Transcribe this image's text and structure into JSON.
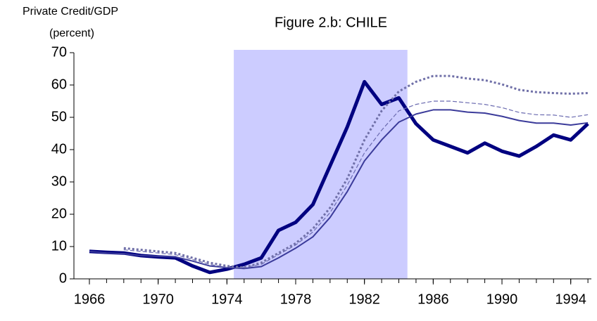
{
  "chart_data": {
    "type": "line",
    "title": "Figure 2.b: CHILE",
    "y_label": [
      "Private Credit/GDP",
      "(percent)"
    ],
    "x": [
      1966,
      1967,
      1968,
      1969,
      1970,
      1971,
      1972,
      1973,
      1974,
      1975,
      1976,
      1977,
      1978,
      1979,
      1980,
      1981,
      1982,
      1983,
      1984,
      1985,
      1986,
      1987,
      1988,
      1989,
      1990,
      1991,
      1992,
      1993,
      1994,
      1995
    ],
    "series": [
      {
        "color": "#000080",
        "width": 5,
        "dash": "none",
        "values": [
          8.5,
          8.2,
          8.0,
          7.2,
          6.8,
          6.5,
          4.0,
          2.0,
          3.0,
          4.5,
          6.5,
          15,
          17.5,
          23,
          35,
          47,
          61,
          54,
          56,
          48,
          43,
          41,
          39,
          42,
          39.5,
          38,
          41,
          44.5,
          43,
          48
        ]
      },
      {
        "color": "#3b3b9a",
        "width": 2,
        "dash": "none",
        "values": [
          8.5,
          8.0,
          7.8,
          7.2,
          7.0,
          6.8,
          5.5,
          4.0,
          3.5,
          3.2,
          3.8,
          6.5,
          9.5,
          13,
          19,
          27,
          36.5,
          43,
          48.5,
          51,
          52.3,
          52.3,
          51.6,
          51.3,
          50.3,
          49,
          48.2,
          48.2,
          47.6,
          48.3
        ]
      },
      {
        "color": "#6b6bb0",
        "width": 1.2,
        "dash": "6 3",
        "values": [
          null,
          null,
          9.0,
          8.5,
          8.0,
          7.5,
          6.0,
          4.5,
          3.5,
          3.5,
          4.5,
          7.5,
          10.5,
          14.5,
          20.5,
          29,
          39,
          46,
          52,
          54,
          55,
          55,
          54.5,
          54,
          53,
          51.5,
          50.8,
          50.7,
          50,
          50.8
        ]
      },
      {
        "color": "#7070a8",
        "width": 3,
        "dash": "3 3",
        "values": [
          null,
          null,
          9.5,
          9,
          8.5,
          8,
          6.5,
          5,
          4,
          3.5,
          5,
          8,
          11,
          15.5,
          22,
          31,
          43,
          52,
          58,
          61,
          62.8,
          62.8,
          62,
          61.5,
          60.2,
          58.5,
          57.8,
          57.5,
          57.3,
          57.5
        ]
      }
    ],
    "shaded": [
      1974.4,
      1984.5
    ],
    "shade_color": "#ccccff",
    "xlim": [
      1965.1,
      1995.2
    ],
    "xticks": [
      1966,
      1970,
      1974,
      1978,
      1982,
      1986,
      1990,
      1994
    ],
    "ylim": [
      0,
      70
    ],
    "yticks": [
      0,
      10,
      20,
      30,
      40,
      50,
      60,
      70
    ]
  }
}
